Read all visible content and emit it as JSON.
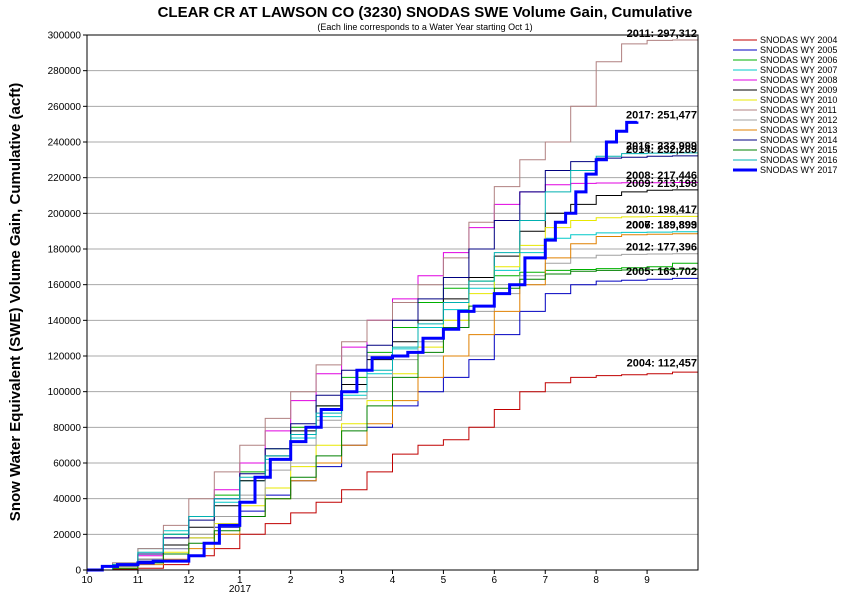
{
  "chart_data": {
    "type": "line",
    "title": "CLEAR CR AT LAWSON CO (3230) SNODAS SWE Volume Gain, Cumulative",
    "subtitle": "(Each line corresponds to a Water Year starting Oct 1)",
    "ylabel": "Snow Water Equivalent (SWE) Volume Gain, Cumulative (acft)",
    "xlabel": "",
    "ylim": [
      0,
      300000
    ],
    "yticks": [
      0,
      20000,
      40000,
      60000,
      80000,
      100000,
      120000,
      140000,
      160000,
      180000,
      200000,
      220000,
      240000,
      260000,
      280000,
      300000
    ],
    "ytick_labels": [
      "0",
      "20000",
      "40000",
      "60000",
      "80000",
      "100000",
      "120000",
      "140000",
      "160000",
      "180000",
      "200000",
      "220000",
      "240000",
      "260000",
      "280000",
      "300000"
    ],
    "xlim": [
      0,
      12
    ],
    "xticks": [
      0,
      1,
      2,
      3,
      4,
      5,
      6,
      7,
      8,
      9,
      10,
      11
    ],
    "xtick_labels": [
      "10",
      "11",
      "12",
      "1",
      "2",
      "3",
      "4",
      "5",
      "6",
      "7",
      "8",
      "9"
    ],
    "year_label": "2017",
    "grid": true,
    "legend_position": "right",
    "series": [
      {
        "name": "SNODAS WY 2004",
        "color": "#c00000",
        "width": 1,
        "x": [
          0,
          0.5,
          1,
          1.5,
          2,
          2.5,
          3,
          3.5,
          4,
          4.5,
          5,
          5.5,
          6,
          6.5,
          7,
          7.5,
          8,
          8.5,
          9,
          9.5,
          10,
          10.5,
          11,
          11.5,
          12
        ],
        "y": [
          0,
          500,
          1000,
          3000,
          8000,
          12000,
          20000,
          26000,
          32000,
          38000,
          45000,
          55000,
          65000,
          70000,
          73000,
          80000,
          90000,
          100000,
          105000,
          108000,
          109000,
          109500,
          110000,
          111000,
          112457
        ],
        "label": "2004: 112,457"
      },
      {
        "name": "SNODAS WY 2005",
        "color": "#0000c0",
        "width": 1,
        "x": [
          0,
          0.5,
          1,
          1.5,
          2,
          2.5,
          3,
          3.5,
          4,
          4.5,
          5,
          5.5,
          6,
          6.5,
          7,
          7.5,
          8,
          8.5,
          9,
          9.5,
          10,
          10.5,
          11,
          11.5,
          12
        ],
        "y": [
          0,
          2000,
          5000,
          12000,
          18000,
          24000,
          33000,
          42000,
          50000,
          58000,
          70000,
          80000,
          92000,
          100000,
          108000,
          118000,
          132000,
          145000,
          155000,
          160000,
          162000,
          162500,
          163000,
          163500,
          163702
        ],
        "label": "2005: 163,702"
      },
      {
        "name": "SNODAS WY 2006",
        "color": "#00b000",
        "width": 1,
        "x": [
          0,
          0.5,
          1,
          1.5,
          2,
          2.5,
          3,
          3.5,
          4,
          4.5,
          5,
          5.5,
          6,
          6.5,
          7,
          7.5,
          8,
          8.5,
          9,
          9.5,
          10,
          10.5,
          11,
          11.5,
          12
        ],
        "y": [
          0,
          3000,
          9000,
          20000,
          30000,
          42000,
          55000,
          68000,
          80000,
          92000,
          108000,
          122000,
          136000,
          150000,
          158000,
          162000,
          165000,
          167000,
          168000,
          168500,
          169000,
          169500,
          170000,
          172000,
          189893
        ],
        "label": "2006: 189,893"
      },
      {
        "name": "SNODAS WY 2007",
        "color": "#00c8c8",
        "width": 1,
        "x": [
          0,
          0.5,
          1,
          1.5,
          2,
          2.5,
          3,
          3.5,
          4,
          4.5,
          5,
          5.5,
          6,
          6.5,
          7,
          7.5,
          8,
          8.5,
          9,
          9.5,
          10,
          10.5,
          11,
          11.5,
          12
        ],
        "y": [
          0,
          4000,
          12000,
          22000,
          30000,
          38000,
          50000,
          62000,
          74000,
          86000,
          98000,
          110000,
          124000,
          136000,
          146000,
          158000,
          168000,
          178000,
          186000,
          188000,
          189000,
          189300,
          189500,
          189700,
          189899
        ],
        "label": "2007: 189,899"
      },
      {
        "name": "SNODAS WY 2008",
        "color": "#e000e0",
        "width": 1,
        "x": [
          0,
          0.5,
          1,
          1.5,
          2,
          2.5,
          3,
          3.5,
          4,
          4.5,
          5,
          5.5,
          6,
          6.5,
          7,
          7.5,
          8,
          8.5,
          9,
          9.5,
          10,
          10.5,
          11,
          11.5,
          12
        ],
        "y": [
          0,
          3000,
          8000,
          18000,
          30000,
          45000,
          60000,
          78000,
          95000,
          110000,
          125000,
          140000,
          152000,
          165000,
          178000,
          192000,
          205000,
          212000,
          216000,
          216800,
          217000,
          217100,
          217200,
          217300,
          217446
        ],
        "label": "2008: 217,446"
      },
      {
        "name": "SNODAS WY 2009",
        "color": "#000000",
        "width": 1,
        "x": [
          0,
          0.5,
          1,
          1.5,
          2,
          2.5,
          3,
          3.5,
          4,
          4.5,
          5,
          5.5,
          6,
          6.5,
          7,
          7.5,
          8,
          8.5,
          9,
          9.5,
          10,
          10.5,
          11,
          11.5,
          12
        ],
        "y": [
          0,
          2000,
          6000,
          14000,
          24000,
          36000,
          50000,
          64000,
          78000,
          92000,
          104000,
          118000,
          128000,
          140000,
          152000,
          164000,
          176000,
          190000,
          200000,
          205000,
          210000,
          212000,
          213000,
          213150,
          213198
        ],
        "label": "2009: 213,198"
      },
      {
        "name": "SNODAS WY 2010",
        "color": "#e8e800",
        "width": 1,
        "x": [
          0,
          0.5,
          1,
          1.5,
          2,
          2.5,
          3,
          3.5,
          4,
          4.5,
          5,
          5.5,
          6,
          6.5,
          7,
          7.5,
          8,
          8.5,
          9,
          9.5,
          10,
          10.5,
          11,
          11.5,
          12
        ],
        "y": [
          0,
          1000,
          4000,
          10000,
          18000,
          26000,
          36000,
          46000,
          58000,
          70000,
          82000,
          95000,
          110000,
          125000,
          140000,
          155000,
          170000,
          182000,
          192000,
          196000,
          197500,
          198000,
          198200,
          198300,
          198417
        ],
        "label": "2010: 198,417"
      },
      {
        "name": "SNODAS WY 2011",
        "color": "#b08080",
        "width": 1,
        "x": [
          0,
          0.5,
          1,
          1.5,
          2,
          2.5,
          3,
          3.5,
          4,
          4.5,
          5,
          5.5,
          6,
          6.5,
          7,
          7.5,
          8,
          8.5,
          9,
          9.5,
          10,
          10.5,
          11,
          11.5,
          12
        ],
        "y": [
          0,
          4000,
          12000,
          25000,
          40000,
          55000,
          70000,
          85000,
          100000,
          115000,
          128000,
          140000,
          150000,
          160000,
          175000,
          195000,
          215000,
          230000,
          240000,
          260000,
          285000,
          295000,
          297000,
          297200,
          297312
        ],
        "label": "2011: 297,312"
      },
      {
        "name": "SNODAS WY 2012",
        "color": "#a0a0a0",
        "width": 1,
        "x": [
          0,
          0.5,
          1,
          1.5,
          2,
          2.5,
          3,
          3.5,
          4,
          4.5,
          5,
          5.5,
          6,
          6.5,
          7,
          7.5,
          8,
          8.5,
          9,
          9.5,
          10,
          10.5,
          11,
          11.5,
          12
        ],
        "y": [
          0,
          2000,
          6000,
          12000,
          20000,
          30000,
          42000,
          56000,
          70000,
          84000,
          96000,
          108000,
          118000,
          128000,
          136000,
          145000,
          155000,
          165000,
          172000,
          175000,
          176500,
          177000,
          177200,
          177300,
          177396
        ],
        "label": "2012: 177,396"
      },
      {
        "name": "SNODAS WY 2013",
        "color": "#e08000",
        "width": 1,
        "x": [
          0,
          0.5,
          1,
          1.5,
          2,
          2.5,
          3,
          3.5,
          4,
          4.5,
          5,
          5.5,
          6,
          6.5,
          7,
          7.5,
          8,
          8.5,
          9,
          9.5,
          10,
          10.5,
          11,
          11.5,
          12
        ],
        "y": [
          0,
          1000,
          3000,
          6000,
          12000,
          20000,
          30000,
          40000,
          50000,
          60000,
          70000,
          82000,
          95000,
          108000,
          120000,
          132000,
          145000,
          160000,
          175000,
          183000,
          187000,
          188000,
          188300,
          188600,
          188800
        ],
        "label": ""
      },
      {
        "name": "SNODAS WY 2014",
        "color": "#000080",
        "width": 1,
        "x": [
          0,
          0.5,
          1,
          1.5,
          2,
          2.5,
          3,
          3.5,
          4,
          4.5,
          5,
          5.5,
          6,
          6.5,
          7,
          7.5,
          8,
          8.5,
          9,
          9.5,
          10,
          10.5,
          11,
          11.5,
          12
        ],
        "y": [
          0,
          3000,
          9000,
          18000,
          28000,
          40000,
          54000,
          68000,
          82000,
          98000,
          112000,
          126000,
          140000,
          152000,
          164000,
          180000,
          196000,
          212000,
          224000,
          229000,
          231000,
          231500,
          232000,
          232200,
          232289
        ],
        "label": "2014: 232,289"
      },
      {
        "name": "SNODAS WY 2015",
        "color": "#008000",
        "width": 1,
        "x": [
          0,
          0.5,
          1,
          1.5,
          2,
          2.5,
          3,
          3.5,
          4,
          4.5,
          5,
          5.5,
          6,
          6.5,
          7,
          7.5,
          8,
          8.5,
          9,
          9.5,
          10,
          10.5,
          11,
          11.5,
          12
        ],
        "y": [
          0,
          1000,
          4000,
          9000,
          15000,
          22000,
          30000,
          40000,
          52000,
          64000,
          78000,
          92000,
          108000,
          122000,
          136000,
          148000,
          158000,
          163000,
          166000,
          167500,
          168000,
          168200,
          168400,
          168600,
          168800
        ],
        "label": ""
      },
      {
        "name": "SNODAS WY 2016",
        "color": "#00b0b0",
        "width": 1,
        "x": [
          0,
          0.5,
          1,
          1.5,
          2,
          2.5,
          3,
          3.5,
          4,
          4.5,
          5,
          5.5,
          6,
          6.5,
          7,
          7.5,
          8,
          8.5,
          9,
          9.5,
          10,
          10.5,
          11,
          11.5,
          12
        ],
        "y": [
          0,
          3000,
          10000,
          20000,
          30000,
          40000,
          52000,
          64000,
          76000,
          88000,
          100000,
          112000,
          125000,
          138000,
          150000,
          162000,
          178000,
          196000,
          212000,
          224000,
          232000,
          233500,
          233800,
          233900,
          233999
        ],
        "label": "2016: 233,999"
      },
      {
        "name": "SNODAS WY 2017",
        "color": "#0000ff",
        "width": 3,
        "x": [
          0,
          0.3,
          0.6,
          1,
          1.3,
          1.6,
          2,
          2.3,
          2.6,
          3,
          3.3,
          3.6,
          4,
          4.3,
          4.6,
          5,
          5.3,
          5.6,
          6,
          6.3,
          6.6,
          7,
          7.3,
          7.6,
          8,
          8.3,
          8.6,
          9,
          9.2,
          9.4,
          9.6,
          9.8,
          10,
          10.2,
          10.4,
          10.6,
          10.8
        ],
        "y": [
          0,
          2000,
          3000,
          4000,
          5000,
          5000,
          8000,
          15000,
          25000,
          38000,
          52000,
          62000,
          72000,
          80000,
          90000,
          100000,
          112000,
          119000,
          120000,
          122000,
          130000,
          135000,
          145000,
          148000,
          155000,
          160000,
          175000,
          185000,
          195000,
          200000,
          212000,
          222000,
          230000,
          240000,
          246000,
          251000,
          251477
        ],
        "label": "2017: 251,477"
      }
    ]
  }
}
